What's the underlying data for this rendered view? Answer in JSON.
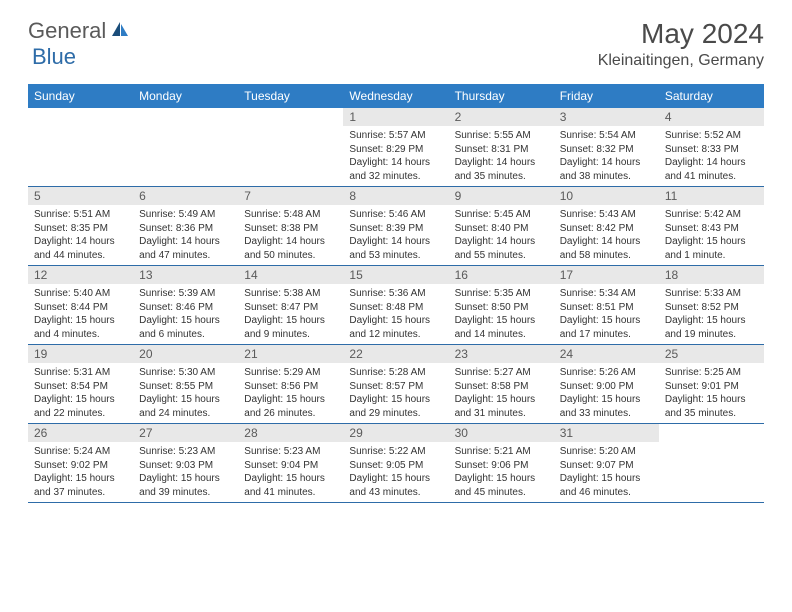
{
  "logo": {
    "text_general": "General",
    "text_blue": "Blue"
  },
  "title": "May 2024",
  "location": "Kleinaitingen, Germany",
  "colors": {
    "header_bg": "#2e7cc4",
    "header_text": "#ffffff",
    "daynum_bg": "#e8e8e8",
    "border": "#2e6ca8",
    "logo_gray": "#5a5a5a",
    "logo_blue": "#2e6ca8"
  },
  "weekdays": [
    "Sunday",
    "Monday",
    "Tuesday",
    "Wednesday",
    "Thursday",
    "Friday",
    "Saturday"
  ],
  "weeks": [
    [
      {
        "day": "",
        "sunrise": "",
        "sunset": "",
        "daylight": ""
      },
      {
        "day": "",
        "sunrise": "",
        "sunset": "",
        "daylight": ""
      },
      {
        "day": "",
        "sunrise": "",
        "sunset": "",
        "daylight": ""
      },
      {
        "day": "1",
        "sunrise": "Sunrise: 5:57 AM",
        "sunset": "Sunset: 8:29 PM",
        "daylight": "Daylight: 14 hours and 32 minutes."
      },
      {
        "day": "2",
        "sunrise": "Sunrise: 5:55 AM",
        "sunset": "Sunset: 8:31 PM",
        "daylight": "Daylight: 14 hours and 35 minutes."
      },
      {
        "day": "3",
        "sunrise": "Sunrise: 5:54 AM",
        "sunset": "Sunset: 8:32 PM",
        "daylight": "Daylight: 14 hours and 38 minutes."
      },
      {
        "day": "4",
        "sunrise": "Sunrise: 5:52 AM",
        "sunset": "Sunset: 8:33 PM",
        "daylight": "Daylight: 14 hours and 41 minutes."
      }
    ],
    [
      {
        "day": "5",
        "sunrise": "Sunrise: 5:51 AM",
        "sunset": "Sunset: 8:35 PM",
        "daylight": "Daylight: 14 hours and 44 minutes."
      },
      {
        "day": "6",
        "sunrise": "Sunrise: 5:49 AM",
        "sunset": "Sunset: 8:36 PM",
        "daylight": "Daylight: 14 hours and 47 minutes."
      },
      {
        "day": "7",
        "sunrise": "Sunrise: 5:48 AM",
        "sunset": "Sunset: 8:38 PM",
        "daylight": "Daylight: 14 hours and 50 minutes."
      },
      {
        "day": "8",
        "sunrise": "Sunrise: 5:46 AM",
        "sunset": "Sunset: 8:39 PM",
        "daylight": "Daylight: 14 hours and 53 minutes."
      },
      {
        "day": "9",
        "sunrise": "Sunrise: 5:45 AM",
        "sunset": "Sunset: 8:40 PM",
        "daylight": "Daylight: 14 hours and 55 minutes."
      },
      {
        "day": "10",
        "sunrise": "Sunrise: 5:43 AM",
        "sunset": "Sunset: 8:42 PM",
        "daylight": "Daylight: 14 hours and 58 minutes."
      },
      {
        "day": "11",
        "sunrise": "Sunrise: 5:42 AM",
        "sunset": "Sunset: 8:43 PM",
        "daylight": "Daylight: 15 hours and 1 minute."
      }
    ],
    [
      {
        "day": "12",
        "sunrise": "Sunrise: 5:40 AM",
        "sunset": "Sunset: 8:44 PM",
        "daylight": "Daylight: 15 hours and 4 minutes."
      },
      {
        "day": "13",
        "sunrise": "Sunrise: 5:39 AM",
        "sunset": "Sunset: 8:46 PM",
        "daylight": "Daylight: 15 hours and 6 minutes."
      },
      {
        "day": "14",
        "sunrise": "Sunrise: 5:38 AM",
        "sunset": "Sunset: 8:47 PM",
        "daylight": "Daylight: 15 hours and 9 minutes."
      },
      {
        "day": "15",
        "sunrise": "Sunrise: 5:36 AM",
        "sunset": "Sunset: 8:48 PM",
        "daylight": "Daylight: 15 hours and 12 minutes."
      },
      {
        "day": "16",
        "sunrise": "Sunrise: 5:35 AM",
        "sunset": "Sunset: 8:50 PM",
        "daylight": "Daylight: 15 hours and 14 minutes."
      },
      {
        "day": "17",
        "sunrise": "Sunrise: 5:34 AM",
        "sunset": "Sunset: 8:51 PM",
        "daylight": "Daylight: 15 hours and 17 minutes."
      },
      {
        "day": "18",
        "sunrise": "Sunrise: 5:33 AM",
        "sunset": "Sunset: 8:52 PM",
        "daylight": "Daylight: 15 hours and 19 minutes."
      }
    ],
    [
      {
        "day": "19",
        "sunrise": "Sunrise: 5:31 AM",
        "sunset": "Sunset: 8:54 PM",
        "daylight": "Daylight: 15 hours and 22 minutes."
      },
      {
        "day": "20",
        "sunrise": "Sunrise: 5:30 AM",
        "sunset": "Sunset: 8:55 PM",
        "daylight": "Daylight: 15 hours and 24 minutes."
      },
      {
        "day": "21",
        "sunrise": "Sunrise: 5:29 AM",
        "sunset": "Sunset: 8:56 PM",
        "daylight": "Daylight: 15 hours and 26 minutes."
      },
      {
        "day": "22",
        "sunrise": "Sunrise: 5:28 AM",
        "sunset": "Sunset: 8:57 PM",
        "daylight": "Daylight: 15 hours and 29 minutes."
      },
      {
        "day": "23",
        "sunrise": "Sunrise: 5:27 AM",
        "sunset": "Sunset: 8:58 PM",
        "daylight": "Daylight: 15 hours and 31 minutes."
      },
      {
        "day": "24",
        "sunrise": "Sunrise: 5:26 AM",
        "sunset": "Sunset: 9:00 PM",
        "daylight": "Daylight: 15 hours and 33 minutes."
      },
      {
        "day": "25",
        "sunrise": "Sunrise: 5:25 AM",
        "sunset": "Sunset: 9:01 PM",
        "daylight": "Daylight: 15 hours and 35 minutes."
      }
    ],
    [
      {
        "day": "26",
        "sunrise": "Sunrise: 5:24 AM",
        "sunset": "Sunset: 9:02 PM",
        "daylight": "Daylight: 15 hours and 37 minutes."
      },
      {
        "day": "27",
        "sunrise": "Sunrise: 5:23 AM",
        "sunset": "Sunset: 9:03 PM",
        "daylight": "Daylight: 15 hours and 39 minutes."
      },
      {
        "day": "28",
        "sunrise": "Sunrise: 5:23 AM",
        "sunset": "Sunset: 9:04 PM",
        "daylight": "Daylight: 15 hours and 41 minutes."
      },
      {
        "day": "29",
        "sunrise": "Sunrise: 5:22 AM",
        "sunset": "Sunset: 9:05 PM",
        "daylight": "Daylight: 15 hours and 43 minutes."
      },
      {
        "day": "30",
        "sunrise": "Sunrise: 5:21 AM",
        "sunset": "Sunset: 9:06 PM",
        "daylight": "Daylight: 15 hours and 45 minutes."
      },
      {
        "day": "31",
        "sunrise": "Sunrise: 5:20 AM",
        "sunset": "Sunset: 9:07 PM",
        "daylight": "Daylight: 15 hours and 46 minutes."
      },
      {
        "day": "",
        "sunrise": "",
        "sunset": "",
        "daylight": ""
      }
    ]
  ]
}
